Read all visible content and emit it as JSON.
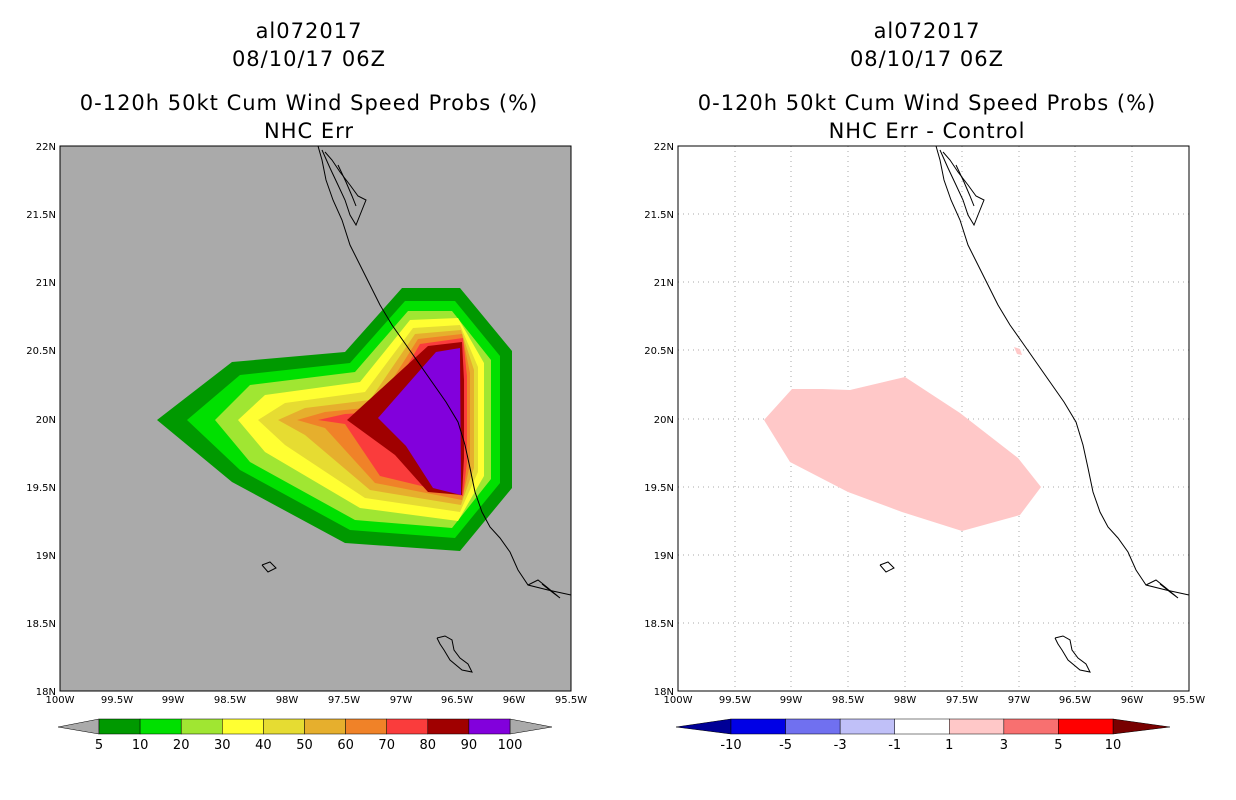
{
  "panels": [
    {
      "title_line1": "al072017",
      "title_line2": "08/10/17 06Z",
      "title_line3": "0-120h 50kt Cum Wind Speed Probs (%)",
      "title_line4": "NHC Err",
      "lat_ticks": [
        "22N",
        "21.5N",
        "21N",
        "20.5N",
        "20N",
        "19.5N",
        "19N",
        "18.5N",
        "18N"
      ],
      "lon_ticks": [
        "100W",
        "99.5W",
        "99W",
        "98.5W",
        "98W",
        "97.5W",
        "97W",
        "96.5W",
        "96W",
        "95.5W"
      ],
      "colorbar": {
        "labels": [
          "5",
          "10",
          "20",
          "30",
          "40",
          "50",
          "60",
          "70",
          "80",
          "90",
          "100"
        ],
        "colors": [
          "#009900",
          "#00e000",
          "#a0e632",
          "#ffff32",
          "#e6dc32",
          "#e6af2d",
          "#f08228",
          "#fa3c3c",
          "#a00000",
          "#8200dc"
        ],
        "end_color": "#aaaaaa"
      }
    },
    {
      "title_line1": "al072017",
      "title_line2": "08/10/17 06Z",
      "title_line3": "0-120h 50kt Cum Wind Speed Probs (%)",
      "title_line4": "NHC Err - Control",
      "lat_ticks": [
        "22N",
        "21.5N",
        "21N",
        "20.5N",
        "20N",
        "19.5N",
        "19N",
        "18.5N",
        "18N"
      ],
      "lon_ticks": [
        "100W",
        "99.5W",
        "99W",
        "98.5W",
        "98W",
        "97.5W",
        "97W",
        "96.5W",
        "96W",
        "95.5W"
      ],
      "colorbar": {
        "labels": [
          "-10",
          "-5",
          "-3",
          "-1",
          "1",
          "3",
          "5",
          "10"
        ],
        "colors": [
          "#0000e6",
          "#7070f0",
          "#c0c0f8",
          "#ffffff",
          "#ffc8c8",
          "#f87070",
          "#ff0000"
        ],
        "left_color": "#000096",
        "right_color": "#780000"
      }
    }
  ]
}
